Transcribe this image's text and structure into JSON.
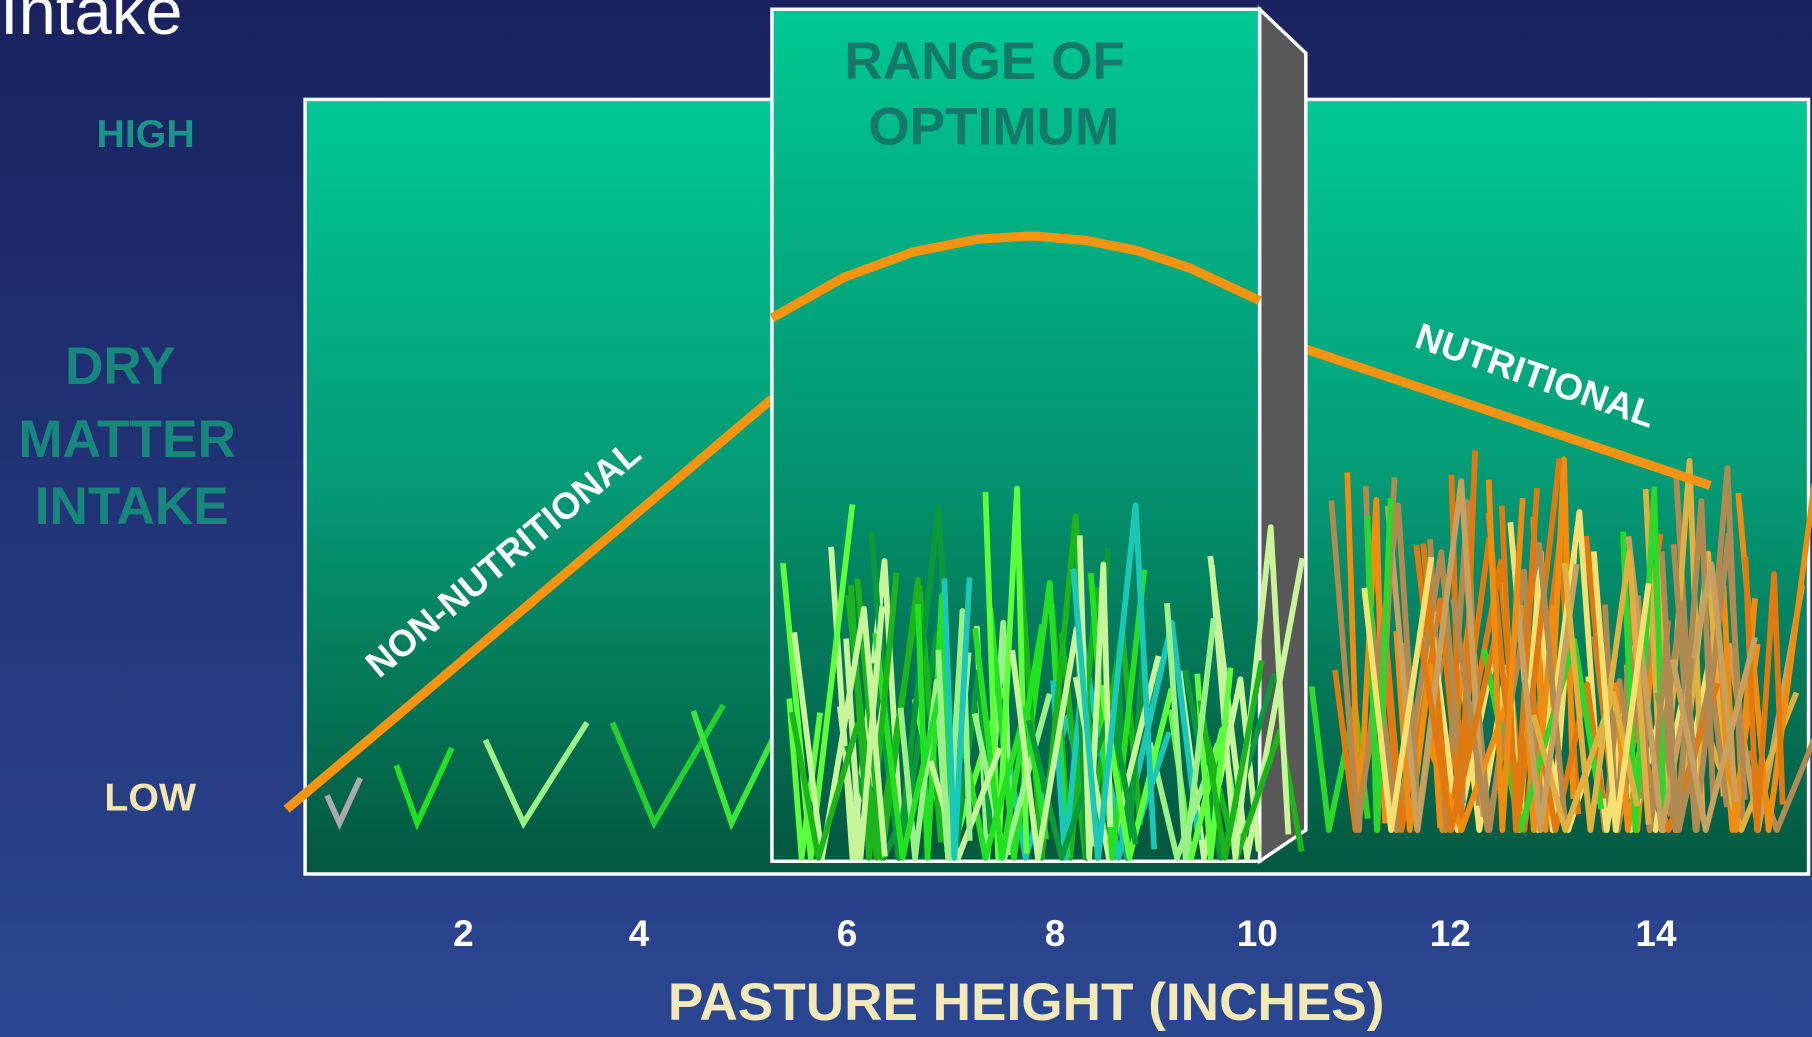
{
  "title": "Intake",
  "y_axis": {
    "high": "HIGH",
    "label_lines": [
      "DRY",
      "MATTER",
      "INTAKE"
    ],
    "low": "LOW"
  },
  "optimum_label_lines": [
    "RANGE OF",
    "OPTIMUM"
  ],
  "curve_labels": {
    "left": "NON-NUTRITIONAL",
    "right": "NUTRITIONAL"
  },
  "x_axis": {
    "ticks": [
      2,
      4,
      6,
      8,
      10,
      12,
      14
    ],
    "title": "PASTURE HEIGHT (INCHES)"
  }
}
